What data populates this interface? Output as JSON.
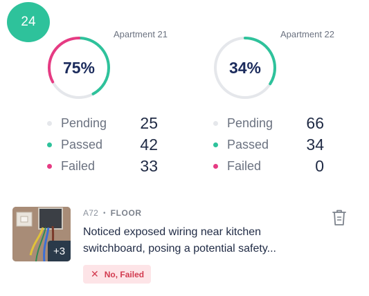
{
  "badge": {
    "count": "24"
  },
  "colors": {
    "accent": "#2ec29b",
    "passed": "#2ec29b",
    "failed": "#e63b83",
    "pending": "#e5e7eb",
    "ring_track": "#e5e7eb"
  },
  "apartments": [
    {
      "name": "Apartment 21",
      "percent_label": "75%",
      "progress": {
        "passed": 0.42,
        "failed": 0.33
      },
      "stats": [
        {
          "label": "Pending",
          "value": "25"
        },
        {
          "label": "Passed",
          "value": "42"
        },
        {
          "label": "Failed",
          "value": "33"
        }
      ]
    },
    {
      "name": "Apartment 22",
      "percent_label": "34%",
      "progress": {
        "passed": 0.34,
        "failed": 0.0
      },
      "stats": [
        {
          "label": "Pending",
          "value": "66"
        },
        {
          "label": "Passed",
          "value": "34"
        },
        {
          "label": "Failed",
          "value": "0"
        }
      ]
    }
  ],
  "issue": {
    "code": "A72",
    "category": "FLOOR",
    "description_line1": "Noticed exposed wiring near kitchen",
    "description_line2": "switchboard, posing a potential safety...",
    "more_photos": "+3",
    "status_label": "No, Failed",
    "status_icon": "x-icon",
    "delete_icon": "trash-icon"
  }
}
